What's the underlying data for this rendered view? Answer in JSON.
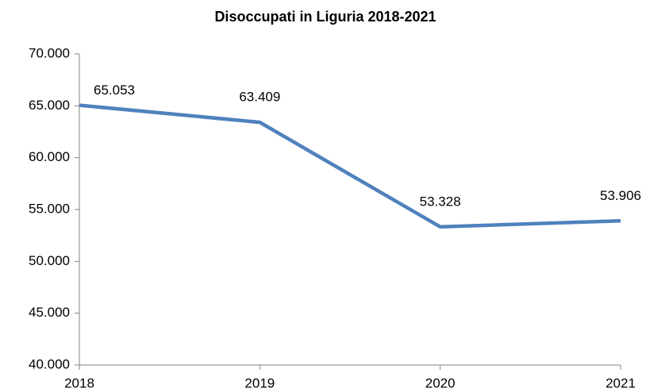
{
  "chart_data": {
    "type": "line",
    "title": "Disoccupati in Liguria 2018-2021",
    "x": [
      2018,
      2019,
      2020,
      2021
    ],
    "xlim": [
      2018,
      2021
    ],
    "xticks": [
      2018,
      2019,
      2020,
      2021
    ],
    "series": [
      {
        "color": "#4f81bd",
        "values": [
          65053,
          63409,
          53328,
          53906
        ],
        "value_labels": [
          "65.053",
          "63.409",
          "53.328",
          "53.906"
        ]
      }
    ],
    "ylim": [
      40000,
      70000
    ],
    "yticks": [
      {
        "value": 40000,
        "label": "40.000"
      },
      {
        "value": 45000,
        "label": "45.000"
      },
      {
        "value": 50000,
        "label": "50.000"
      },
      {
        "value": 55000,
        "label": "55.000"
      },
      {
        "value": 60000,
        "label": "60.000"
      },
      {
        "value": 65000,
        "label": "65.000"
      },
      {
        "value": 70000,
        "label": "70.000"
      }
    ],
    "grid": false
  }
}
